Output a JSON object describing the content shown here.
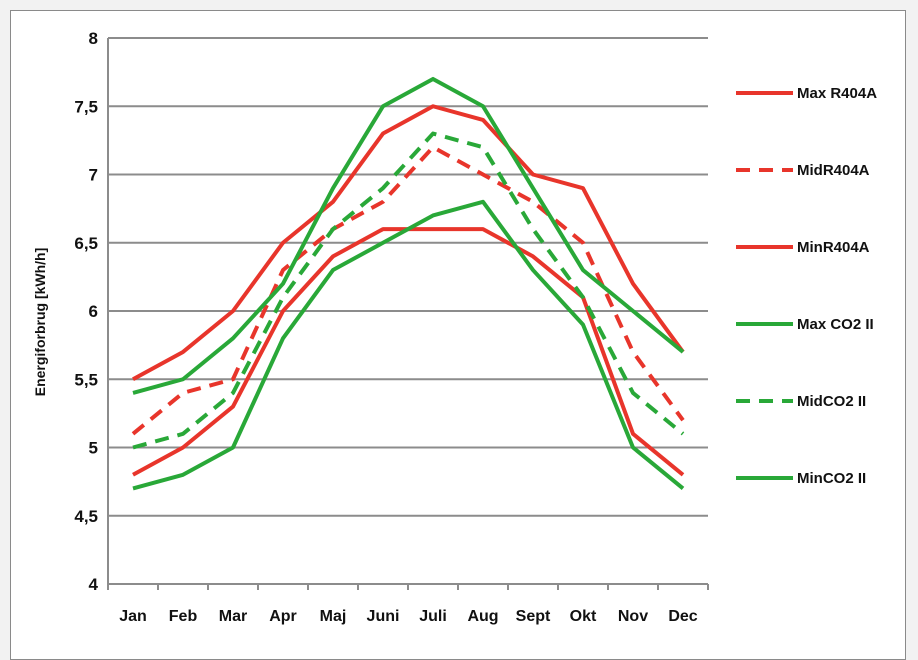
{
  "chart_data": {
    "type": "line",
    "title": "",
    "xlabel": "",
    "ylabel": "Energiforbrug [kWh/h]",
    "categories": [
      "Jan",
      "Feb",
      "Mar",
      "Apr",
      "Maj",
      "Juni",
      "Juli",
      "Aug",
      "Sept",
      "Okt",
      "Nov",
      "Dec"
    ],
    "ylim": [
      4,
      8
    ],
    "yticks": [
      "4",
      "4,5",
      "5",
      "5,5",
      "6",
      "6,5",
      "7",
      "7,5",
      "8"
    ],
    "grid": "horizontal",
    "legend_position": "right",
    "series": [
      {
        "name": "Max R404A",
        "color": "#e8352b",
        "dash": "solid",
        "values": [
          5.5,
          5.7,
          6.0,
          6.5,
          6.8,
          7.3,
          7.5,
          7.4,
          7.0,
          6.9,
          6.2,
          5.7
        ]
      },
      {
        "name": "MidR404A",
        "color": "#e8352b",
        "dash": "dashed",
        "values": [
          5.1,
          5.4,
          5.5,
          6.3,
          6.6,
          6.8,
          7.2,
          7.0,
          6.8,
          6.5,
          5.7,
          5.2
        ]
      },
      {
        "name": "MinR404A",
        "color": "#e8352b",
        "dash": "solid",
        "values": [
          4.8,
          5.0,
          5.3,
          6.0,
          6.4,
          6.6,
          6.6,
          6.6,
          6.4,
          6.1,
          5.1,
          4.8
        ]
      },
      {
        "name": "Max CO2 II",
        "color": "#29a838",
        "dash": "solid",
        "values": [
          5.4,
          5.5,
          5.8,
          6.2,
          6.9,
          7.5,
          7.7,
          7.5,
          6.9,
          6.3,
          6.0,
          5.7
        ]
      },
      {
        "name": "MidCO2 II",
        "color": "#29a838",
        "dash": "dashed",
        "values": [
          5.0,
          5.1,
          5.4,
          6.1,
          6.6,
          6.9,
          7.3,
          7.2,
          6.6,
          6.1,
          5.4,
          5.1
        ]
      },
      {
        "name": "MinCO2 II",
        "color": "#29a838",
        "dash": "solid",
        "values": [
          4.7,
          4.8,
          5.0,
          5.8,
          6.3,
          6.5,
          6.7,
          6.8,
          6.3,
          5.9,
          5.0,
          4.7
        ]
      }
    ]
  }
}
